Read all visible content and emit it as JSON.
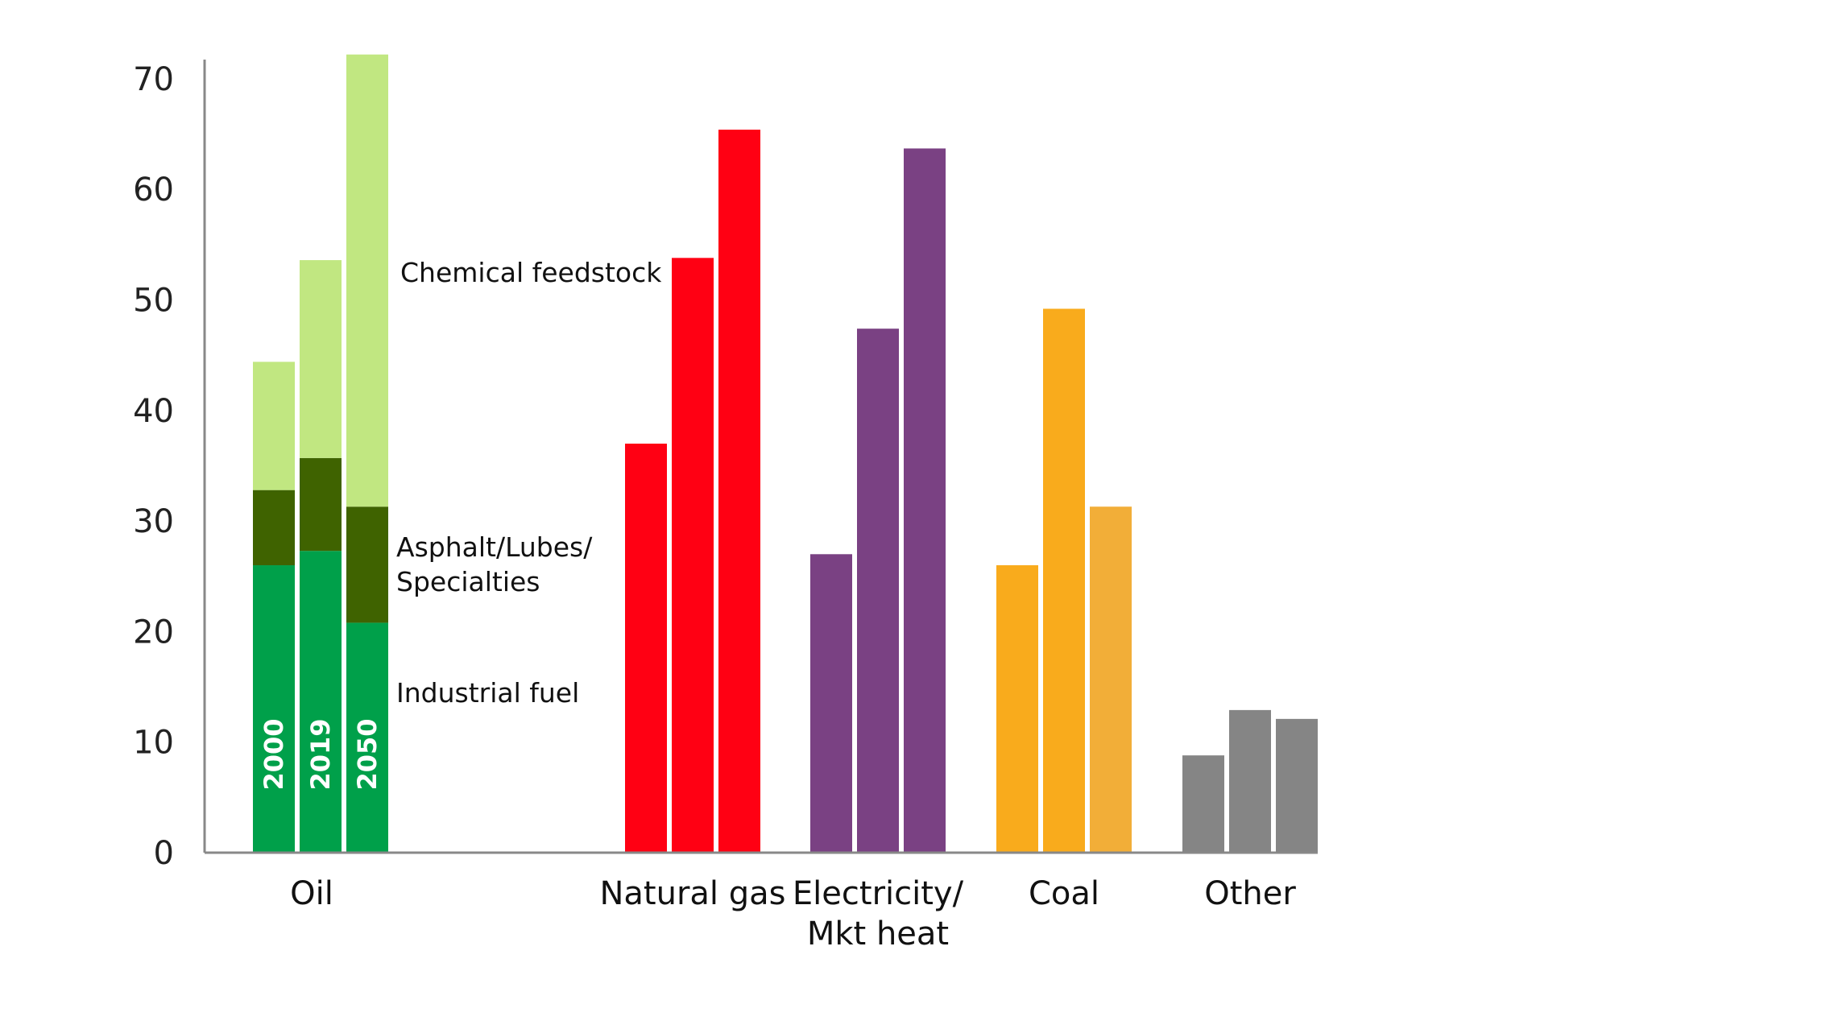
{
  "chart_data": {
    "type": "bar",
    "title": "",
    "xlabel": "",
    "ylabel": "",
    "ylim": [
      0,
      72
    ],
    "yticks": [
      0,
      10,
      20,
      30,
      40,
      50,
      60,
      70
    ],
    "grid": false,
    "years": [
      "2000",
      "2019",
      "2050"
    ],
    "oil": {
      "label": "Oil",
      "stack": [
        {
          "name": "Industrial fuel",
          "color": "#00A04A",
          "values": [
            26,
            27.3,
            20.8
          ]
        },
        {
          "name": "Asphalt/Lubes/ Specialties",
          "color": "#3F6300",
          "values": [
            6.8,
            8.4,
            10.5
          ]
        },
        {
          "name": "Chemical feedstock",
          "color": "#C1E781",
          "values": [
            11.6,
            17.9,
            40.9
          ]
        }
      ],
      "annotations": {
        "feedstock": "Chemical feedstock",
        "asphalt_line1": "Asphalt/Lubes/",
        "asphalt_line2": "Specialties",
        "industrial": "Industrial fuel"
      }
    },
    "groups": [
      {
        "label_lines": [
          "Natural gas"
        ],
        "colors": [
          "#FF0013",
          "#FF0013",
          "#FF0013"
        ],
        "values": [
          37,
          53.8,
          65.4
        ]
      },
      {
        "label_lines": [
          "Electricity/",
          "Mkt heat"
        ],
        "colors": [
          "#7A4183",
          "#7A4183",
          "#7A4183"
        ],
        "values": [
          27,
          47.4,
          63.7
        ]
      },
      {
        "label_lines": [
          "Coal"
        ],
        "colors": [
          "#F9AB1C",
          "#F9AB1C",
          "#F2AE38"
        ],
        "values": [
          26,
          49.2,
          31.3
        ]
      },
      {
        "label_lines": [
          "Other"
        ],
        "colors": [
          "#858585",
          "#858585",
          "#858585"
        ],
        "values": [
          8.8,
          12.9,
          12.1
        ]
      }
    ]
  }
}
